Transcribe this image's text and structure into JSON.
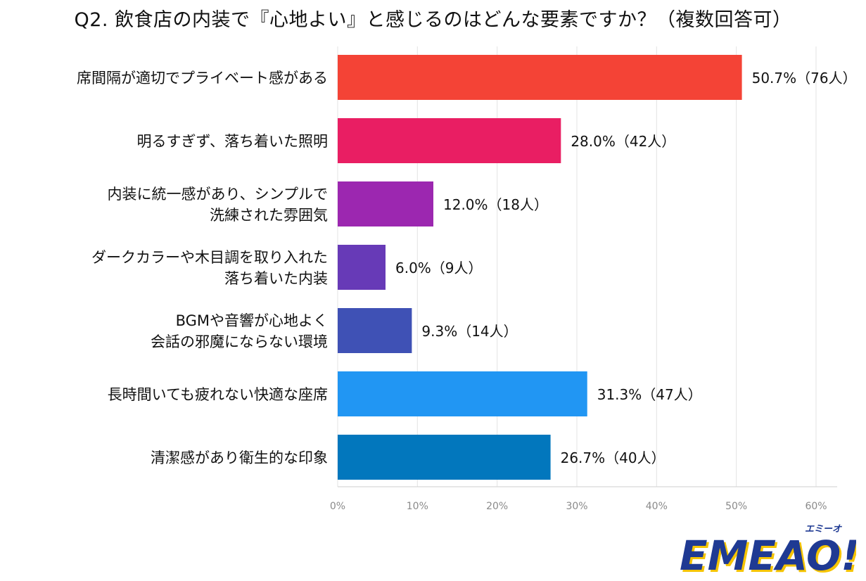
{
  "title": "Q2. 飲食店の内装で『心地よい』と感じるのはどんな要素ですか？（複数回答可）",
  "chart_data": {
    "type": "bar",
    "orientation": "horizontal",
    "title": "Q2. 飲食店の内装で『心地よい』と感じるのはどんな要素ですか？（複数回答可）",
    "categories": [
      [
        "席間隔が適切でプライベート感がある"
      ],
      [
        "明るすぎず、落ち着いた照明"
      ],
      [
        "内装に統一感があり、シンプルで",
        "洗練された雰囲気"
      ],
      [
        "ダークカラーや木目調を取り入れた",
        "落ち着いた内装"
      ],
      [
        "BGMや音響が心地よく",
        "会話の邪魔にならない環境"
      ],
      [
        "長時間いても疲れない快適な座席"
      ],
      [
        "清潔感があり衛生的な印象"
      ]
    ],
    "values": [
      50.7,
      28.0,
      12.0,
      6.0,
      9.3,
      31.3,
      26.7
    ],
    "data_labels": [
      "50.7%（76人）",
      "28.0%（42人）",
      "12.0%（18人）",
      "6.0%（9人）",
      "9.3%（14人）",
      "31.3%（47人）",
      "26.7%（40人）"
    ],
    "colors": [
      "#f44336",
      "#e91e63",
      "#9c27b0",
      "#673ab7",
      "#3f51b5",
      "#2196f3",
      "#0277bd"
    ],
    "xlim": [
      0,
      60
    ],
    "xticks": [
      0,
      10,
      20,
      30,
      40,
      50,
      60
    ],
    "xtick_labels": [
      "0%",
      "10%",
      "20%",
      "30%",
      "40%",
      "50%",
      "60%"
    ],
    "grid": true
  },
  "logo": {
    "text": "EMEAO!",
    "ruby": "エミーオ",
    "color": "#1f3a93",
    "accent": "#f5c400"
  }
}
